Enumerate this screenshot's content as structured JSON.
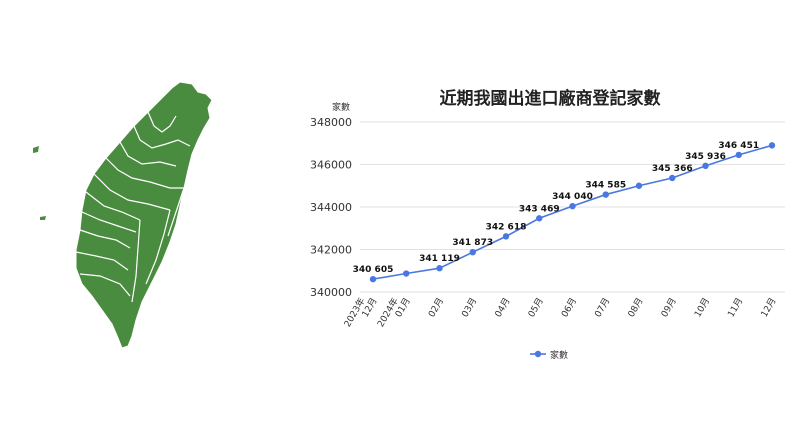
{
  "map": {
    "icon": "taiwan-map-icon",
    "fill_color": "#4a8c3f"
  },
  "chart_data": {
    "type": "line",
    "title": "近期我國出進口廠商登記家數",
    "ylabel": "家數",
    "ylim": [
      340000,
      348000
    ],
    "yticks": [
      "340000",
      "342000",
      "344000",
      "346000",
      "348000"
    ],
    "categories": [
      "2023年12月",
      "2024年01月",
      "02月",
      "03月",
      "04月",
      "05月",
      "06月",
      "07月",
      "08月",
      "09月",
      "10月",
      "11月",
      "12月"
    ],
    "series": [
      {
        "name": "家數",
        "color": "#4a78e0",
        "values": [
          340605,
          340870,
          341119,
          341873,
          342618,
          343469,
          344040,
          344585,
          345000,
          345366,
          345936,
          346451,
          346900
        ],
        "labels": [
          "340 605",
          "",
          "341 119",
          "341 873",
          "342 618",
          "343 469",
          "344 040",
          "344 585",
          "",
          "345 366",
          "345 936",
          "346 451",
          ""
        ]
      }
    ],
    "legend_position": "bottom",
    "grid": true
  }
}
